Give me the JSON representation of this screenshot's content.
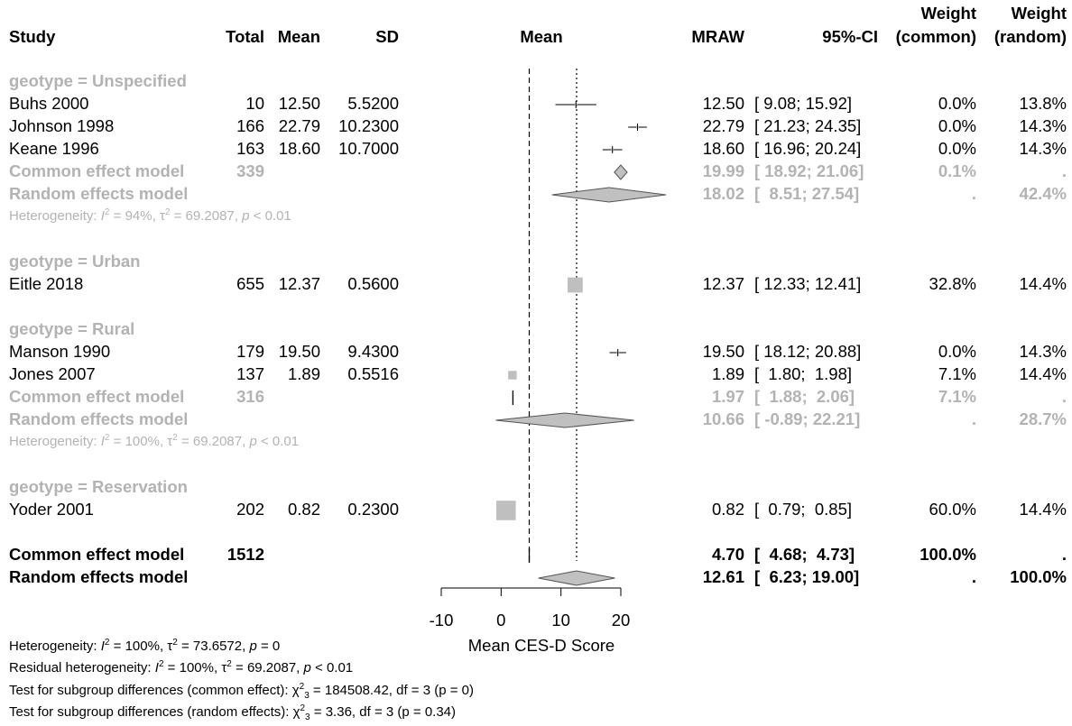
{
  "headers": {
    "study": "Study",
    "total": "Total",
    "mean": "Mean",
    "sd": "SD",
    "plot_mean": "Mean",
    "mraw": "MRAW",
    "ci": "95%-CI",
    "weight_common_1": "Weight",
    "weight_common_2": "(common)",
    "weight_random_1": "Weight",
    "weight_random_2": "(random)"
  },
  "rows": [
    {
      "kind": "group",
      "label": "geotype = Unspecified"
    },
    {
      "kind": "study",
      "label": "Buhs 2000",
      "total": "10",
      "mean": "12.50",
      "sd": "5.5200",
      "mraw": "12.50",
      "ci": "[ 9.08; 15.92]",
      "wc": "0.0%",
      "wr": "13.8%"
    },
    {
      "kind": "study",
      "label": "Johnson 1998",
      "total": "166",
      "mean": "22.79",
      "sd": "10.2300",
      "mraw": "22.79",
      "ci": "[ 21.23; 24.35]",
      "wc": "0.0%",
      "wr": "14.3%"
    },
    {
      "kind": "study",
      "label": "Keane 1996",
      "total": "163",
      "mean": "18.60",
      "sd": "10.7000",
      "mraw": "18.60",
      "ci": "[ 16.96; 20.24]",
      "wc": "0.0%",
      "wr": "14.3%"
    },
    {
      "kind": "sub-common",
      "label": "Common effect model",
      "total": "339",
      "mraw": "19.99",
      "ci": "[ 18.92; 21.06]",
      "wc": "0.1%",
      "wr": "."
    },
    {
      "kind": "sub-random",
      "label": "Random effects model",
      "mraw": "18.02",
      "ci": "[  8.51; 27.54]",
      "wc": ".",
      "wr": "42.4%"
    },
    {
      "kind": "het",
      "i2": "94%",
      "tau2": "69.2087",
      "p": "< 0.01"
    },
    {
      "kind": "blank"
    },
    {
      "kind": "group",
      "label": "geotype = Urban"
    },
    {
      "kind": "study",
      "label": "Eitle 2018",
      "total": "655",
      "mean": "12.37",
      "sd": "0.5600",
      "mraw": "12.37",
      "ci": "[ 12.33; 12.41]",
      "wc": "32.8%",
      "wr": "14.4%"
    },
    {
      "kind": "blank"
    },
    {
      "kind": "group",
      "label": "geotype = Rural"
    },
    {
      "kind": "study",
      "label": "Manson 1990",
      "total": "179",
      "mean": "19.50",
      "sd": "9.4300",
      "mraw": "19.50",
      "ci": "[ 18.12; 20.88]",
      "wc": "0.0%",
      "wr": "14.3%"
    },
    {
      "kind": "study",
      "label": "Jones 2007",
      "total": "137",
      "mean": "1.89",
      "sd": "0.5516",
      "mraw": "1.89",
      "ci": "[  1.80;  1.98]",
      "wc": "7.1%",
      "wr": "14.4%"
    },
    {
      "kind": "sub-common",
      "label": "Common effect model",
      "total": "316",
      "mraw": "1.97",
      "ci": "[  1.88;  2.06]",
      "wc": "7.1%",
      "wr": "."
    },
    {
      "kind": "sub-random",
      "label": "Random effects model",
      "mraw": "10.66",
      "ci": "[ -0.89; 22.21]",
      "wc": ".",
      "wr": "28.7%"
    },
    {
      "kind": "het",
      "i2": "100%",
      "tau2": "69.2087",
      "p": "< 0.01"
    },
    {
      "kind": "blank"
    },
    {
      "kind": "group",
      "label": "geotype = Reservation"
    },
    {
      "kind": "study",
      "label": "Yoder 2001",
      "total": "202",
      "mean": "0.82",
      "sd": "0.2300",
      "mraw": "0.82",
      "ci": "[  0.79;  0.85]",
      "wc": "60.0%",
      "wr": "14.4%"
    },
    {
      "kind": "blank"
    },
    {
      "kind": "overall-common",
      "label": "Common effect model",
      "total": "1512",
      "mraw": "4.70",
      "ci": "[  4.68;  4.73]",
      "wc": "100.0%",
      "wr": "."
    },
    {
      "kind": "overall-random",
      "label": "Random effects model",
      "mraw": "12.61",
      "ci": "[  6.23; 19.00]",
      "wc": ".",
      "wr": "100.0%"
    }
  ],
  "footer": {
    "heterogeneity": {
      "prefix": "Heterogeneity: ",
      "i2": "100%",
      "tau2": "73.6572",
      "p": "= 0"
    },
    "residual": {
      "prefix": "Residual heterogeneity: ",
      "i2": "100%",
      "tau2": "69.2087",
      "p": "< 0.01"
    },
    "subgroup_common": {
      "prefix": "Test for subgroup differences (common effect): ",
      "chi": "184508.42",
      "df": "df = 3",
      "p": "(p = 0)"
    },
    "subgroup_random": {
      "prefix": "Test for subgroup differences (random effects): ",
      "chi": "3.36",
      "df": "df = 3",
      "p": "(p = 0.34)"
    }
  },
  "chart_data": {
    "type": "forest",
    "xlabel": "Mean CES-D Score",
    "xlim": [
      -10,
      20
    ],
    "xticks": [
      -10,
      0,
      10,
      20
    ],
    "common_line": 4.7,
    "random_line": 12.61,
    "colors": {
      "grey": "#b3b3b3",
      "diamond": "#c0c0c0",
      "box": "#bfbfbf"
    },
    "studies": [
      {
        "label": "Buhs 2000",
        "est": 12.5,
        "lo": 9.08,
        "hi": 15.92,
        "w": 0.0
      },
      {
        "label": "Johnson 1998",
        "est": 22.79,
        "lo": 21.23,
        "hi": 24.35,
        "w": 0.0
      },
      {
        "label": "Keane 1996",
        "est": 18.6,
        "lo": 16.96,
        "hi": 20.24,
        "w": 0.0
      },
      {
        "label": "Eitle 2018",
        "est": 12.37,
        "lo": 12.33,
        "hi": 12.41,
        "w": 32.8
      },
      {
        "label": "Manson 1990",
        "est": 19.5,
        "lo": 18.12,
        "hi": 20.88,
        "w": 0.0
      },
      {
        "label": "Jones 2007",
        "est": 1.89,
        "lo": 1.8,
        "hi": 1.98,
        "w": 7.1
      },
      {
        "label": "Yoder 2001",
        "est": 0.82,
        "lo": 0.79,
        "hi": 0.85,
        "w": 60.0
      }
    ],
    "diamonds": [
      {
        "label": "Unspecified common",
        "est": 19.99,
        "lo": 18.92,
        "hi": 21.06
      },
      {
        "label": "Unspecified random",
        "est": 18.02,
        "lo": 8.51,
        "hi": 27.54
      },
      {
        "label": "Rural common",
        "est": 1.97,
        "lo": 1.88,
        "hi": 2.06
      },
      {
        "label": "Rural random",
        "est": 10.66,
        "lo": -0.89,
        "hi": 22.21
      },
      {
        "label": "Overall common",
        "est": 4.7,
        "lo": 4.68,
        "hi": 4.73
      },
      {
        "label": "Overall random",
        "est": 12.61,
        "lo": 6.23,
        "hi": 19.0
      }
    ]
  }
}
